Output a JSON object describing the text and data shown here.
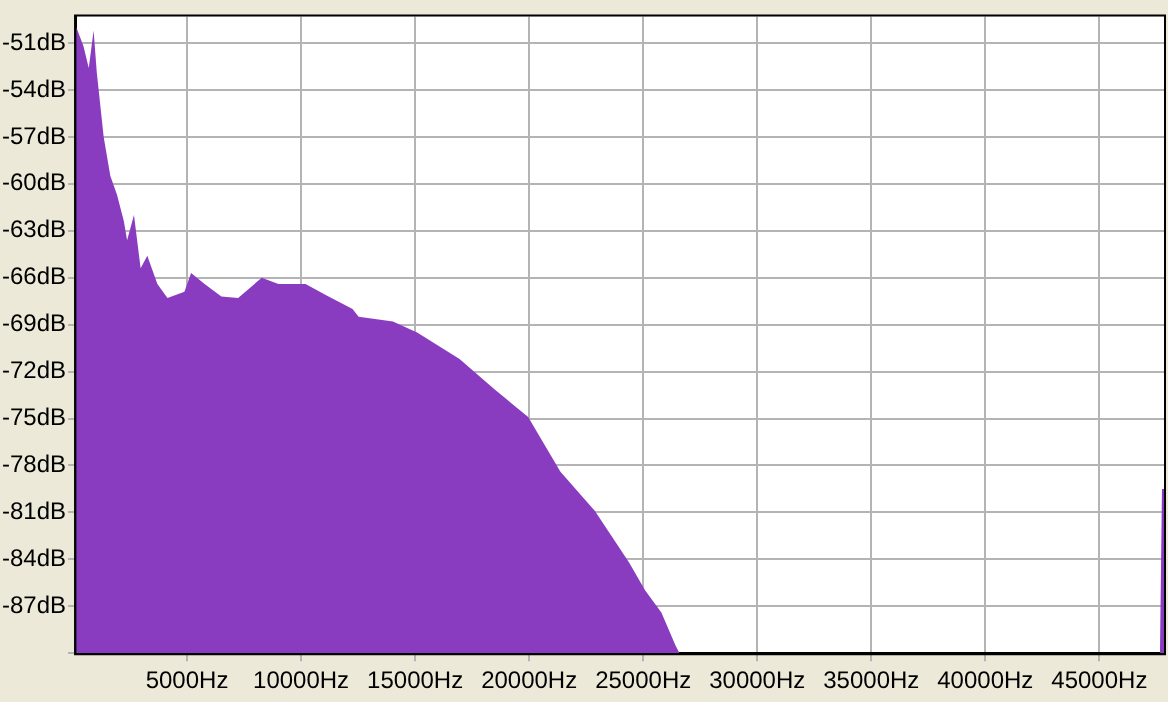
{
  "chart_data": {
    "type": "area",
    "series": [
      {
        "color": "#8a3cc0",
        "x": [
          133,
          133,
          159,
          460,
          690,
          903,
          1044,
          1345,
          1637,
          1929,
          2230,
          2372,
          2673,
          2965,
          3257,
          3699,
          4142,
          4885,
          5177,
          5770,
          6505,
          7239,
          8275,
          9009,
          10195,
          11080,
          12257,
          12523,
          14027,
          15089,
          16948,
          18452,
          19956,
          21372,
          22877,
          24381,
          25089,
          25797,
          26417,
          26594,
          47658,
          47746,
          47835,
          47835
        ],
        "values": [
          -90,
          -50.0,
          -50.0,
          -51.2,
          -52.6,
          -50.2,
          -52.9,
          -57.0,
          -59.5,
          -60.7,
          -62.4,
          -63.6,
          -62.0,
          -65.4,
          -64.6,
          -66.4,
          -67.3,
          -66.9,
          -65.7,
          -66.4,
          -67.2,
          -67.3,
          -66.0,
          -66.4,
          -66.4,
          -67.1,
          -68.0,
          -68.5,
          -68.8,
          -69.5,
          -71.2,
          -73.1,
          -74.9,
          -78.4,
          -80.9,
          -84.2,
          -86.0,
          -87.4,
          -89.5,
          -90,
          -90,
          -79.5,
          -79.5,
          -90
        ]
      }
    ],
    "xlim": [
      133,
      47835
    ],
    "xticks": [
      {
        "value": 5000,
        "label": "5000Hz"
      },
      {
        "value": 10000,
        "label": "10000Hz"
      },
      {
        "value": 15000,
        "label": "15000Hz"
      },
      {
        "value": 20000,
        "label": "20000Hz"
      },
      {
        "value": 25000,
        "label": "25000Hz"
      },
      {
        "value": 30000,
        "label": "30000Hz"
      },
      {
        "value": 35000,
        "label": "35000Hz"
      },
      {
        "value": 40000,
        "label": "40000Hz"
      },
      {
        "value": 45000,
        "label": "45000Hz"
      }
    ],
    "ylim": [
      -90,
      -49.3
    ],
    "yticks": [
      {
        "value": -90,
        "label": null
      },
      {
        "value": -87,
        "label": "-87dB"
      },
      {
        "value": -84,
        "label": "-84dB"
      },
      {
        "value": -81,
        "label": "-81dB"
      },
      {
        "value": -78,
        "label": "-78dB"
      },
      {
        "value": -75,
        "label": "-75dB"
      },
      {
        "value": -72,
        "label": "-72dB"
      },
      {
        "value": -69,
        "label": "-69dB"
      },
      {
        "value": -66,
        "label": "-66dB"
      },
      {
        "value": -63,
        "label": "-63dB"
      },
      {
        "value": -60,
        "label": "-60dB"
      },
      {
        "value": -57,
        "label": "-57dB"
      },
      {
        "value": -54,
        "label": "-54dB"
      },
      {
        "value": -51,
        "label": "-51dB"
      }
    ],
    "grid": true
  }
}
